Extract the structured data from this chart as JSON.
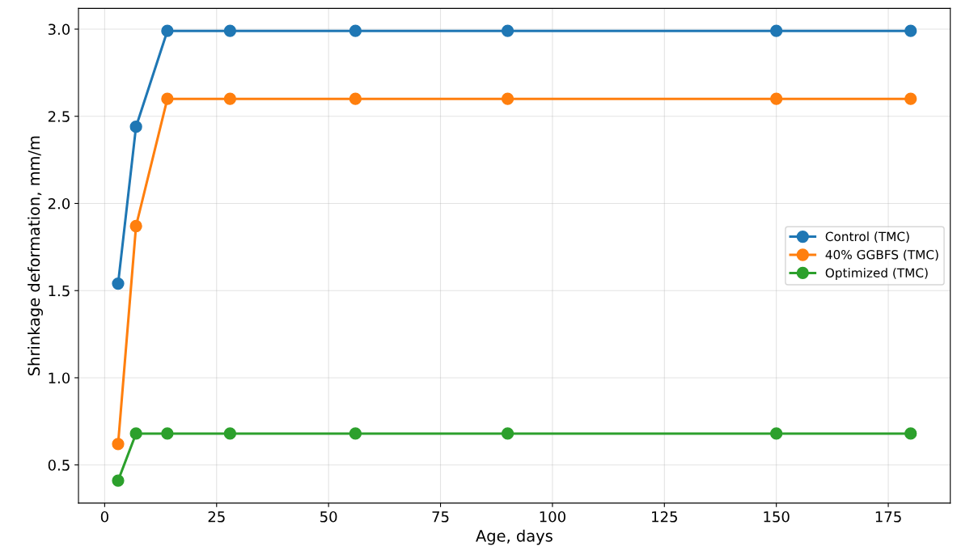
{
  "chart_data": {
    "type": "line",
    "xlabel": "Age, days",
    "ylabel": "Shrinkage deformation, mm/m",
    "x": [
      3,
      7,
      14,
      28,
      56,
      90,
      150,
      180
    ],
    "series": [
      {
        "name": "Control (TMC)",
        "color": "#1f77b4",
        "values": [
          1.54,
          2.44,
          2.99,
          2.99,
          2.99,
          2.99,
          2.99,
          2.99
        ]
      },
      {
        "name": "40% GGBFS (TMC)",
        "color": "#ff7f0e",
        "values": [
          0.62,
          1.87,
          2.6,
          2.6,
          2.6,
          2.6,
          2.6,
          2.6
        ]
      },
      {
        "name": "Optimized (TMC)",
        "color": "#2ca02c",
        "values": [
          0.41,
          0.68,
          0.68,
          0.68,
          0.68,
          0.68,
          0.68,
          0.68
        ]
      }
    ],
    "xlim": [
      -5.85,
      188.85
    ],
    "ylim": [
      0.281,
      3.119
    ],
    "xticks": [
      0,
      25,
      50,
      75,
      100,
      125,
      150,
      175
    ],
    "yticks": [
      {
        "value": 0.5,
        "label": "0.5"
      },
      {
        "value": 1.0,
        "label": "1.0"
      },
      {
        "value": 1.5,
        "label": "1.5"
      },
      {
        "value": 2.0,
        "label": "2.0"
      },
      {
        "value": 2.5,
        "label": "2.5"
      },
      {
        "value": 3.0,
        "label": "3.0"
      }
    ],
    "grid": true,
    "legend": "center right",
    "marker": "circle",
    "line_style": "solid"
  }
}
